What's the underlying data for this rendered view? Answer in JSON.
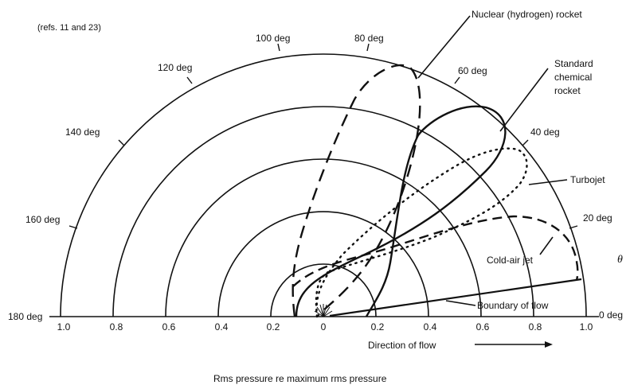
{
  "reference": "(refs. 11 and 23)",
  "angle_labels": [
    "180 deg",
    "160 deg",
    "140 deg",
    "120 deg",
    "100 deg",
    "80 deg",
    "60 deg",
    "40 deg",
    "20 deg",
    "0 deg"
  ],
  "axis_ticks": [
    "1.0",
    "0.8",
    "0.6",
    "0.4",
    "0.2",
    "0",
    "0.2",
    "0.4",
    "0.6",
    "0.8",
    "1.0"
  ],
  "curve_labels": {
    "nuclear": "Nuclear (hydrogen) rocket",
    "standard_line1": "Standard",
    "standard_line2": "chemical",
    "standard_line3": "rocket",
    "turbojet": "Turbojet",
    "cold_air": "Cold-air jet"
  },
  "boundary_label": "Boundary of flow",
  "direction_label": "Direction of flow",
  "theta_symbol": "θ",
  "caption": "Rms pressure re maximum rms pressure"
}
